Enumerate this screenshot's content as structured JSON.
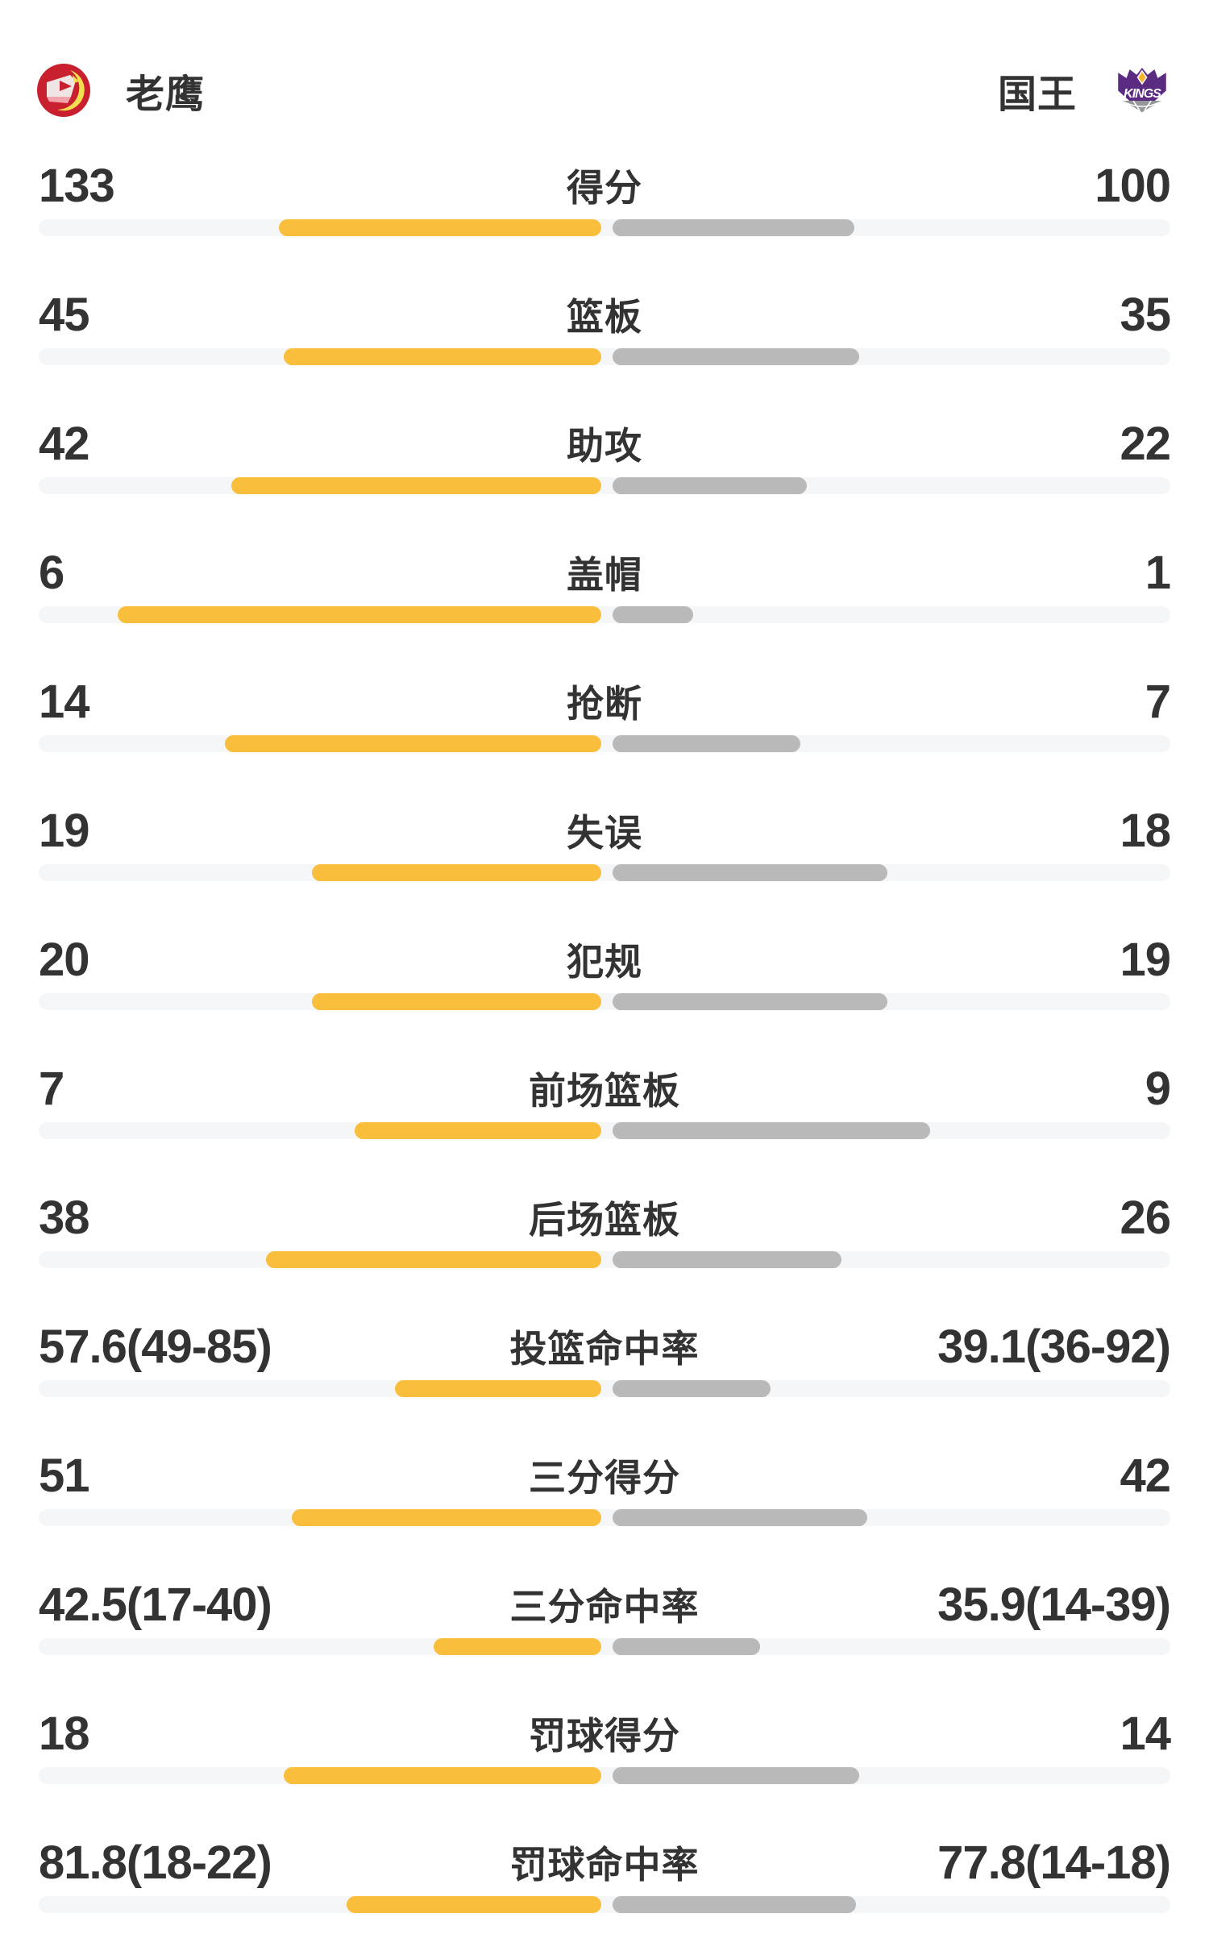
{
  "header": {
    "left_team": {
      "name": "老鹰"
    },
    "right_team": {
      "name": "国王",
      "logo_text": "KINGS"
    }
  },
  "colors": {
    "left_bar": "#F9BE3C",
    "right_bar": "#B9B9B9",
    "track": "#F5F6F7",
    "text": "#333333",
    "hawks_red": "#C8202F",
    "hawks_yellow": "#F2DE4E",
    "kings_purple": "#5B2B82",
    "kings_gold": "#F6B42C",
    "kings_silver": "#94969A"
  },
  "rows": [
    {
      "label": "得分",
      "left": "133",
      "right": "100",
      "left_bar": 400,
      "right_bar": 300
    },
    {
      "label": "篮板",
      "left": "45",
      "right": "35",
      "left_bar": 394,
      "right_bar": 306
    },
    {
      "label": "助攻",
      "left": "42",
      "right": "22",
      "left_bar": 459,
      "right_bar": 241
    },
    {
      "label": "盖帽",
      "left": "6",
      "right": "1",
      "left_bar": 600,
      "right_bar": 100
    },
    {
      "label": "抢断",
      "left": "14",
      "right": "7",
      "left_bar": 467,
      "right_bar": 233
    },
    {
      "label": "失误",
      "left": "19",
      "right": "18",
      "left_bar": 359,
      "right_bar": 341
    },
    {
      "label": "犯规",
      "left": "20",
      "right": "19",
      "left_bar": 359,
      "right_bar": 341
    },
    {
      "label": "前场篮板",
      "left": "7",
      "right": "9",
      "left_bar": 306,
      "right_bar": 394
    },
    {
      "label": "后场篮板",
      "left": "38",
      "right": "26",
      "left_bar": 416,
      "right_bar": 284
    },
    {
      "label": "投篮命中率",
      "left": "57.6(49-85)",
      "right": "39.1(36-92)",
      "left_bar": 256,
      "right_bar": 196
    },
    {
      "label": "三分得分",
      "left": "51",
      "right": "42",
      "left_bar": 384,
      "right_bar": 316
    },
    {
      "label": "三分命中率",
      "left": "42.5(17-40)",
      "right": "35.9(14-39)",
      "left_bar": 208,
      "right_bar": 183
    },
    {
      "label": "罚球得分",
      "left": "18",
      "right": "14",
      "left_bar": 394,
      "right_bar": 306
    },
    {
      "label": "罚球命中率",
      "left": "81.8(18-22)",
      "right": "77.8(14-18)",
      "left_bar": 316,
      "right_bar": 302
    }
  ]
}
